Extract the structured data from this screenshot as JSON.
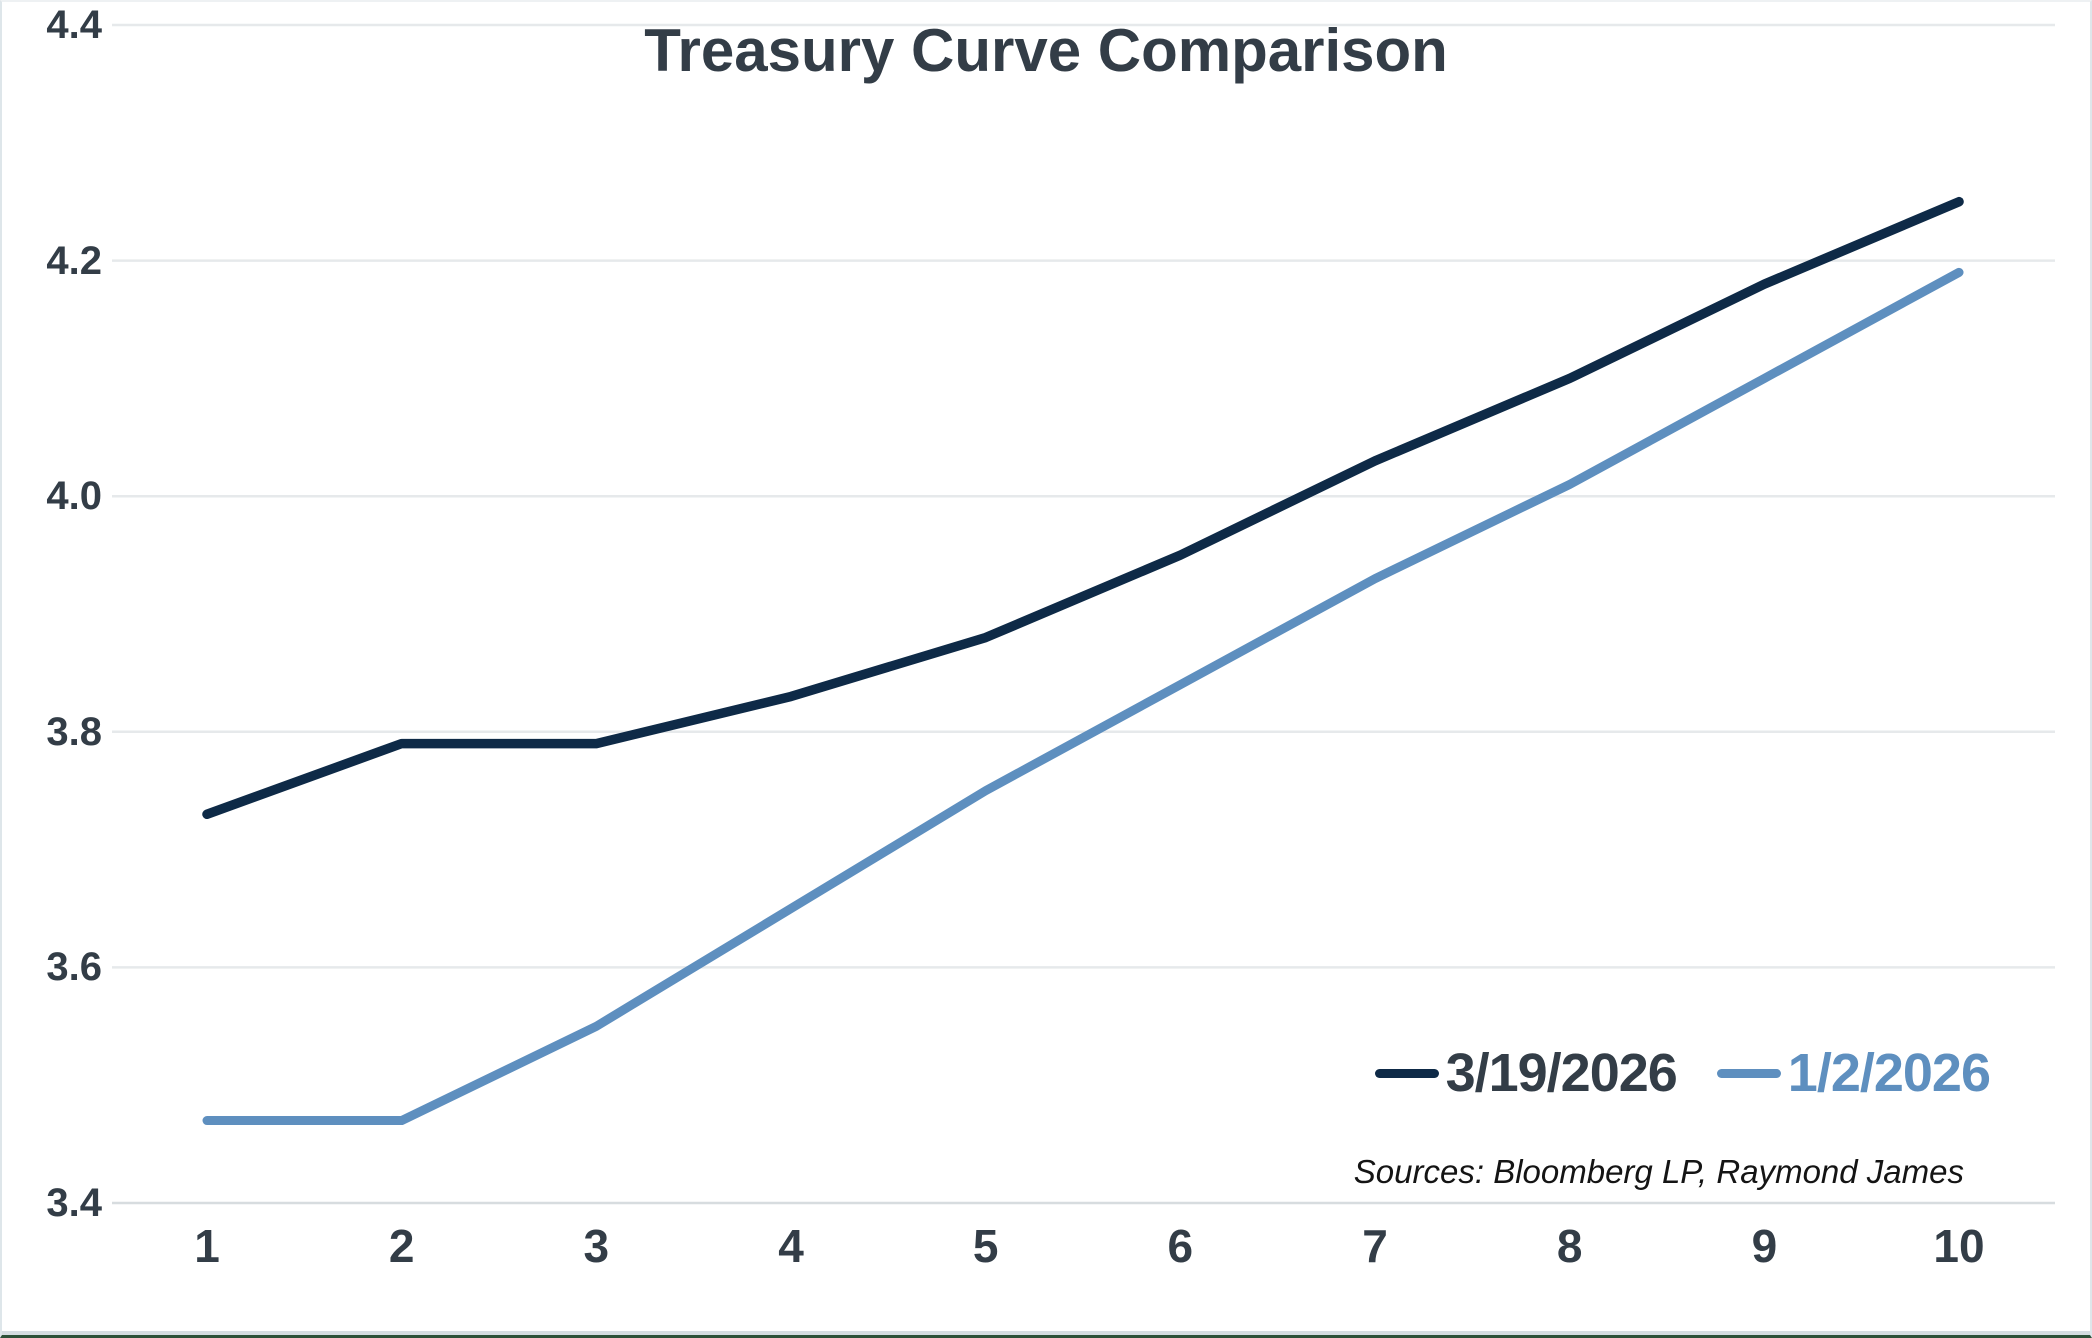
{
  "title": "Treasury Curve Comparison",
  "source_note": "Sources: Bloomberg LP, Raymond James",
  "legend": {
    "items": [
      {
        "label": "3/19/2026",
        "color": "#0e2a47"
      },
      {
        "label": "1/2/2026",
        "color": "#5e8fbf"
      }
    ]
  },
  "colors": {
    "series_dark_navy": "#0e2a47",
    "series_light_blue": "#5e8fbf",
    "text_dark": "#333d47",
    "gridline": "#e6e9eb",
    "baseline": "#d7dcdf",
    "bottom_accent_green": "#2d5138",
    "bottom_strip_gray": "#d5dde1",
    "frame_border": "#dee6ea"
  },
  "chart_data": {
    "type": "line",
    "title": "Treasury Curve Comparison",
    "x": [
      1,
      2,
      3,
      4,
      5,
      6,
      7,
      8,
      9,
      10
    ],
    "xlabel": "",
    "ylabel": "",
    "ylim": [
      3.4,
      4.4
    ],
    "yticks": [
      3.4,
      3.6,
      3.8,
      4.0,
      4.2,
      4.4
    ],
    "grid": true,
    "legend_position": "bottom-right",
    "series": [
      {
        "name": "3/19/2026",
        "color": "#0e2a47",
        "values": [
          3.73,
          3.79,
          3.79,
          3.83,
          3.88,
          3.95,
          4.03,
          4.1,
          4.18,
          4.25
        ]
      },
      {
        "name": "1/2/2026",
        "color": "#5e8fbf",
        "values": [
          3.47,
          3.47,
          3.55,
          3.65,
          3.75,
          3.84,
          3.93,
          4.01,
          4.1,
          4.19
        ]
      }
    ]
  }
}
